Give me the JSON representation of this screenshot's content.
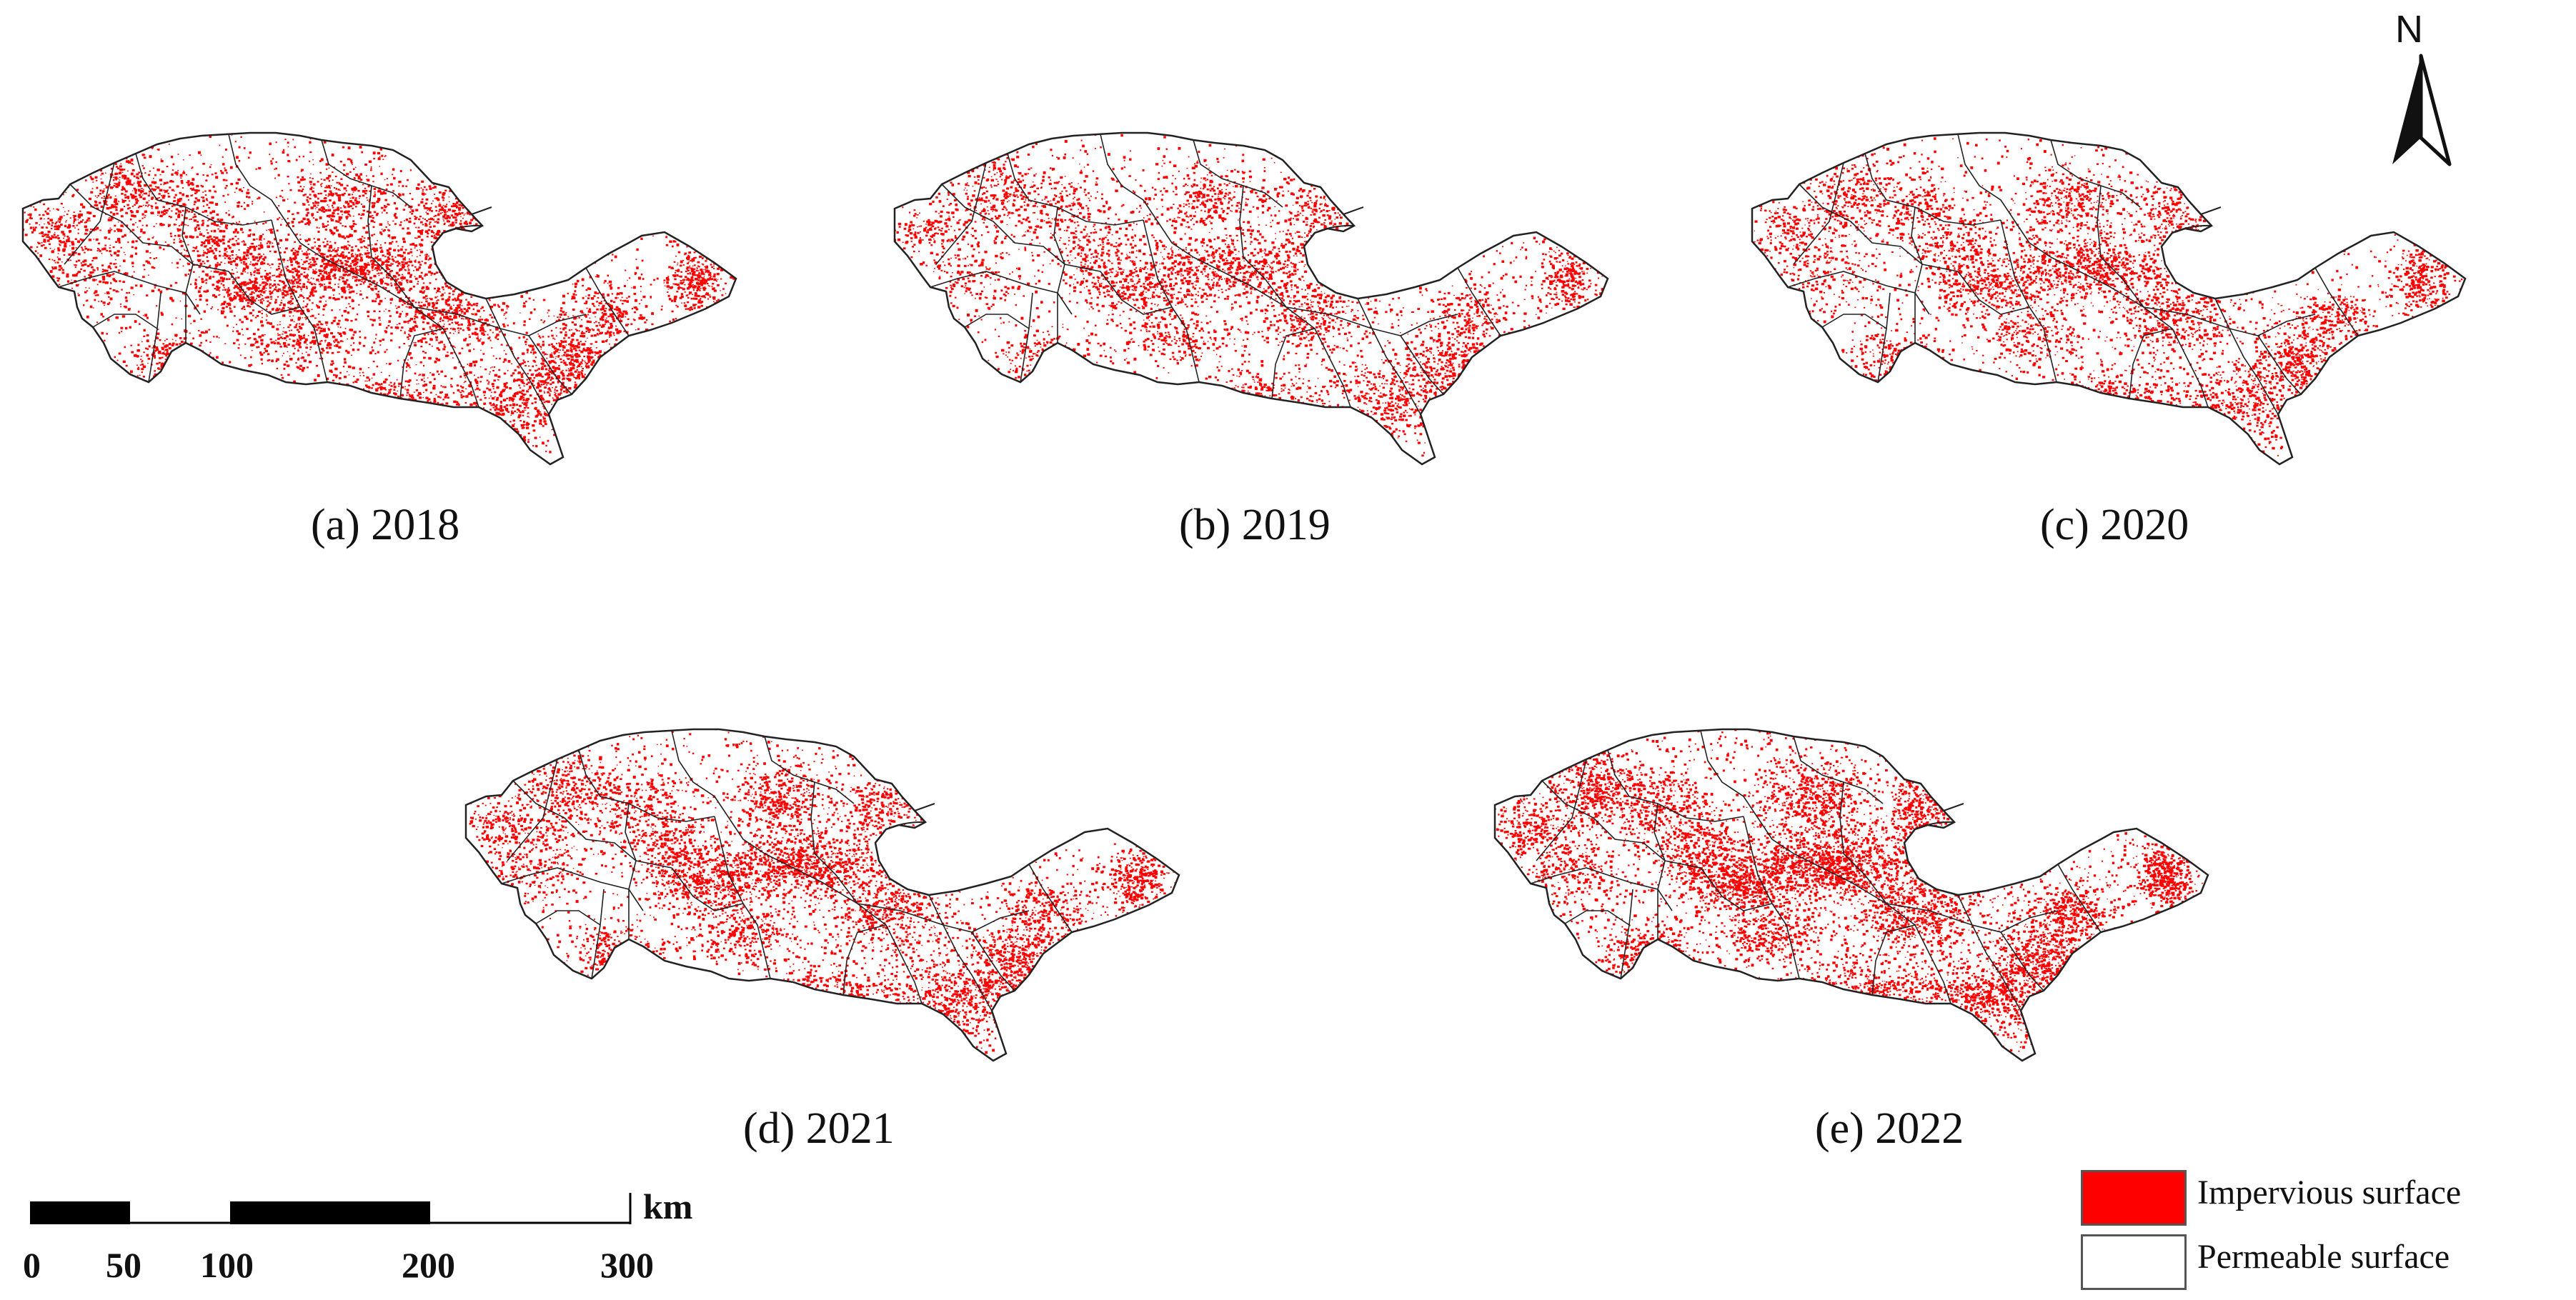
{
  "panels": [
    {
      "key": "a",
      "caption": "(a) 2018",
      "density": 0.95
    },
    {
      "key": "b",
      "caption": "(b) 2019",
      "density": 0.75
    },
    {
      "key": "c",
      "caption": "(c) 2020",
      "density": 0.85
    },
    {
      "key": "d",
      "caption": "(d) 2021",
      "density": 1.0
    },
    {
      "key": "e",
      "caption": "(e) 2022",
      "density": 1.25
    }
  ],
  "north_arrow": {
    "label": "N"
  },
  "scale_bar": {
    "unit": "km",
    "ticks": [
      "0",
      "50",
      "100",
      "200",
      "300"
    ],
    "segments_km": [
      [
        0,
        50,
        "filled"
      ],
      [
        50,
        100,
        "empty"
      ],
      [
        100,
        200,
        "filled"
      ],
      [
        200,
        300,
        "empty"
      ]
    ]
  },
  "legend": {
    "items": [
      {
        "label": "Impervious surface",
        "color": "#ff0000"
      },
      {
        "label": "Permeable surface",
        "color": "#ffffff"
      }
    ]
  },
  "colors": {
    "impervious": "#ff0000",
    "boundary": "#222222",
    "background": "#ffffff"
  }
}
